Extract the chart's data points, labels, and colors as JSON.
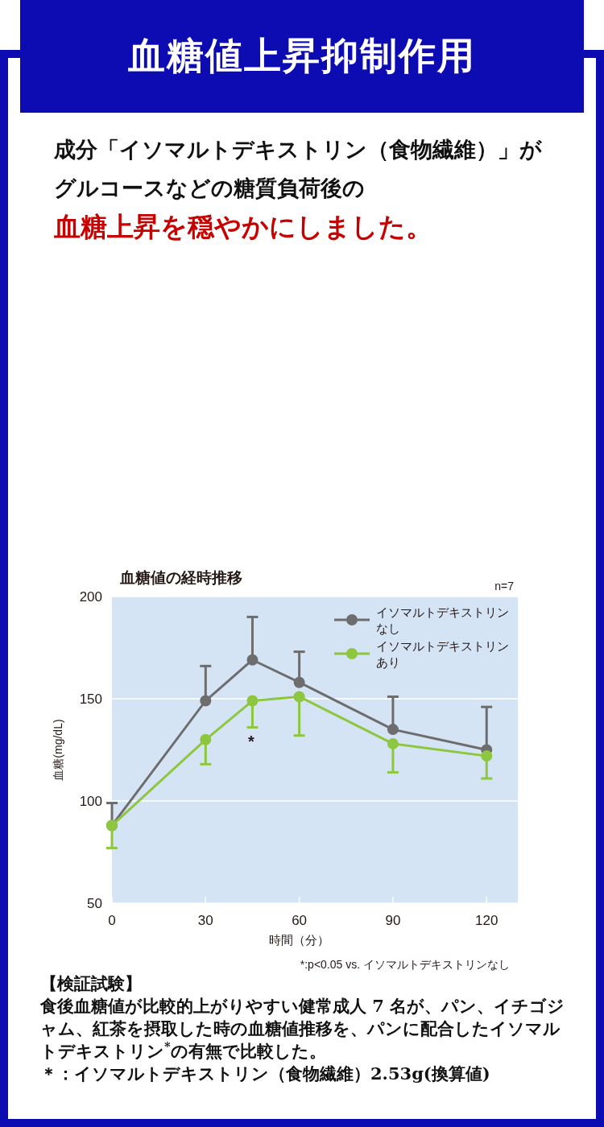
{
  "chart_data": {
    "type": "line",
    "title": "血糖値の経時推移",
    "subtitle": "成分「イソマルトデキストリン（食物繊維）」がグルコースなどの糖質負荷後の",
    "xlabel": "時間（分）",
    "ylabel": "血糖(mg/dL)",
    "x": [
      0,
      30,
      45,
      60,
      90,
      120
    ],
    "series": [
      {
        "name": "イソマルトデキストリンなし",
        "color": "#6d6d6d",
        "values": [
          88,
          149,
          169,
          158,
          135,
          125
        ],
        "errors": [
          [
            88,
            99
          ],
          [
            149,
            166
          ],
          [
            169,
            190
          ],
          [
            158,
            173
          ],
          [
            135,
            151
          ],
          [
            125,
            146
          ]
        ]
      },
      {
        "name": "イソマルトデキストリンあり",
        "color": "#8dc63f",
        "values": [
          88,
          130,
          149,
          151,
          128,
          122
        ],
        "errors": [
          [
            77,
            88
          ],
          [
            118,
            130
          ],
          [
            136,
            149
          ],
          [
            132,
            151
          ],
          [
            114,
            128
          ],
          [
            111,
            122
          ]
        ]
      }
    ],
    "xlim": [
      0,
      130
    ],
    "xticks": [
      0,
      30,
      60,
      90,
      120
    ],
    "ylim": [
      50,
      200
    ],
    "yticks": [
      50,
      100,
      150,
      200
    ],
    "grid": "y",
    "legend": "top right",
    "marker": "circle",
    "line_style": "solid",
    "annotations": [
      "血糖値上昇抑制作用",
      "血糖上昇を穏やかにしました。",
      "n=7",
      "*",
      "*:p<0.05 vs. イソマルトデキストリンなし",
      "【検証試験】",
      "食後血糖値が比較的上がりやすい健常成人 7 名が、パン、イチゴジャム、紅茶を摂取した時の血糖値推移を、パンに配合したイソマルトデキストリン$^{*}$の有無で比較した。",
      "＊：イソマルトデキストリン（食物繊維）2.53g(換算値)"
    ]
  }
}
